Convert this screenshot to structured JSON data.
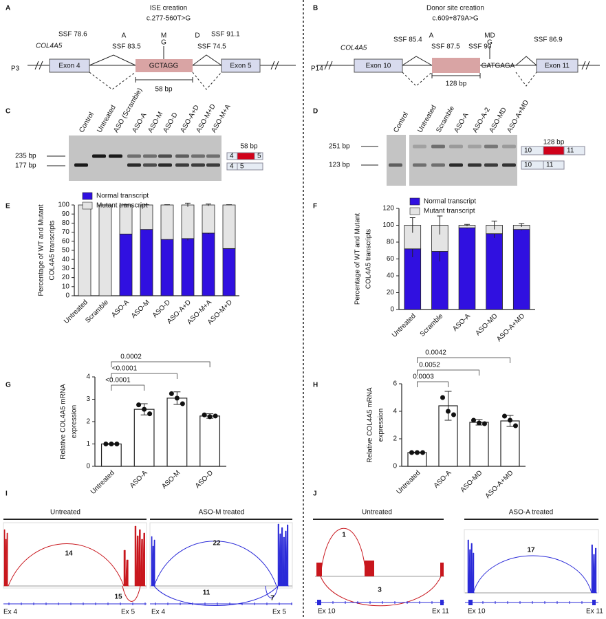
{
  "panel_labels": [
    "A",
    "B",
    "C",
    "D",
    "E",
    "F",
    "G",
    "H",
    "I",
    "J"
  ],
  "panel_a": {
    "title": "ISE creation",
    "subtitle": "c.277-560T>G",
    "patient": "P3",
    "gene": "COL4A5",
    "exons": [
      "Exon 4",
      "Exon 5"
    ],
    "ssf": [
      "SSF 78.6",
      "SSF 83.5",
      "SSF 74.5",
      "SSF 91.1"
    ],
    "site_marks": [
      "A",
      "M",
      "D"
    ],
    "mutation": "G",
    "sequence": "GCTAGG",
    "length": "58 bp"
  },
  "panel_b": {
    "title": "Donor site creation",
    "subtitle": "c.609+879A>G",
    "patient": "P14",
    "gene": "COL4A5",
    "exons": [
      "Exon 10",
      "Exon 11"
    ],
    "ssf": [
      "SSF 85.4",
      "SSF 87.5",
      "SSF 90",
      "SSF 86.9"
    ],
    "site_marks": [
      "A",
      "MD"
    ],
    "mutation": "G",
    "sequence": "GATGAGA",
    "length": "128 bp"
  },
  "panel_c": {
    "lanes": [
      "Control",
      "Untreated",
      "ASO (Scramble)",
      "ASO-A",
      "ASO-M",
      "ASO-D",
      "ASO-A+D",
      "ASO-M+D",
      "ASO-M+A"
    ],
    "sizes": [
      "235 bp",
      "177 bp"
    ],
    "insert": "58 bp",
    "exon_labels": [
      "4",
      "5",
      "4",
      "5"
    ]
  },
  "panel_d": {
    "lanes": [
      "Control",
      "Untreated",
      "Scramble",
      "ASO-A",
      "ASO-A-2",
      "ASO-MD",
      "ASO-A+MD"
    ],
    "sizes": [
      "251 bp",
      "123 bp"
    ],
    "insert": "128 bp",
    "exon_labels": [
      "10",
      "11",
      "10",
      "11"
    ]
  },
  "chart_data": [
    {
      "type": "bar",
      "y_label": [
        "Percentage of WT and Mutant",
        "COL4A5 transcripts"
      ],
      "categories": [
        "Untreated",
        "Scramble",
        "ASO-A",
        "ASO-M",
        "ASO-D",
        "ASO-A+D",
        "ASO-M+A",
        "ASO-M+D"
      ],
      "series": [
        {
          "name": "Normal transcript",
          "color": "#3010e0",
          "values": [
            0,
            0,
            68,
            73,
            62,
            63,
            69,
            52
          ],
          "errors": [
            0,
            0,
            0.5,
            0.5,
            0.5,
            2,
            1,
            0.5
          ]
        },
        {
          "name": "Mutant transcript",
          "color": "#e4e4e4",
          "values": [
            100,
            100,
            32,
            27,
            38,
            37,
            31,
            48
          ],
          "errors": [
            0,
            0,
            0.3,
            0.3,
            0.3,
            2,
            1,
            0.3
          ]
        }
      ],
      "ylim": [
        0,
        100
      ],
      "yticks": [
        0,
        10,
        20,
        30,
        40,
        50,
        60,
        70,
        80,
        90,
        100
      ]
    },
    {
      "type": "bar",
      "y_label": [
        "Percentage of WT and Mutant",
        "COL4A5 transcripts"
      ],
      "categories": [
        "Untreated",
        "Scramble",
        "ASO-A",
        "ASO-MD",
        "ASO-A+MD"
      ],
      "series": [
        {
          "name": "Normal transcript",
          "color": "#3010e0",
          "values": [
            72,
            69,
            97,
            90,
            95
          ],
          "errors": [
            10,
            12,
            1,
            5,
            1
          ]
        },
        {
          "name": "Mutant transcript",
          "color": "#e4e4e4",
          "values": [
            28,
            31,
            3,
            10,
            5
          ],
          "errors": [
            9,
            11,
            1,
            5,
            2
          ]
        }
      ],
      "ylim": [
        0,
        120
      ],
      "yticks": [
        0,
        20,
        40,
        60,
        80,
        100,
        120
      ]
    },
    {
      "type": "bar",
      "y_label": [
        "Relative COL4A5 mRNA",
        "expression"
      ],
      "color": "#ffffff",
      "categories": [
        "Untreated",
        "ASO-A",
        "ASO-M",
        "ASO-D"
      ],
      "values": [
        1,
        2.55,
        3.05,
        2.25
      ],
      "errors": [
        0.02,
        0.25,
        0.28,
        0.1
      ],
      "points": [
        [
          1,
          1,
          1
        ],
        [
          2.75,
          2.55,
          2.35
        ],
        [
          3.25,
          3.05,
          2.8
        ],
        [
          2.3,
          2.22,
          2.25
        ]
      ],
      "comparisons": [
        {
          "groups": [
            "Untreated",
            "ASO-A"
          ],
          "label": "<0.0001"
        },
        {
          "groups": [
            "Untreated",
            "ASO-M"
          ],
          "label": "<0.0001"
        },
        {
          "groups": [
            "Untreated",
            "ASO-D"
          ],
          "label": "0.0002"
        }
      ],
      "ylim": [
        0,
        4
      ],
      "yticks": [
        0,
        1,
        2,
        3,
        4
      ]
    },
    {
      "type": "bar",
      "y_label": [
        "Relative COL4A5 mRNA",
        "expression"
      ],
      "color": "#ffffff",
      "categories": [
        "Untreated",
        "ASO-A",
        "ASO-MD",
        "ASO-A+MD"
      ],
      "values": [
        1,
        4.4,
        3.2,
        3.3
      ],
      "errors": [
        0.03,
        1.05,
        0.2,
        0.4
      ],
      "points": [
        [
          1,
          1,
          1
        ],
        [
          5.0,
          4.0,
          3.75
        ],
        [
          3.35,
          3.15,
          3.1
        ],
        [
          3.65,
          3.35,
          2.95
        ]
      ],
      "comparisons": [
        {
          "groups": [
            "Untreated",
            "ASO-A"
          ],
          "label": "0.0003"
        },
        {
          "groups": [
            "Untreated",
            "ASO-MD"
          ],
          "label": "0.0052"
        },
        {
          "groups": [
            "Untreated",
            "ASO-A+MD"
          ],
          "label": "0.0042"
        }
      ],
      "ylim": [
        0,
        6
      ],
      "yticks": [
        0,
        2,
        4,
        6
      ]
    }
  ],
  "panel_i": {
    "tracks": [
      "Untreated",
      "ASO-M treated"
    ],
    "junctions": [
      14,
      15,
      22,
      11,
      7
    ],
    "exons": [
      "Ex 4",
      "Ex 5",
      "Ex 4",
      "Ex 5"
    ]
  },
  "panel_j": {
    "tracks": [
      "Untreated",
      "ASO-A treated"
    ],
    "junctions": [
      1,
      3,
      17
    ],
    "exons": [
      "Ex 10",
      "Ex 11",
      "Ex 10",
      "Ex 11"
    ]
  }
}
